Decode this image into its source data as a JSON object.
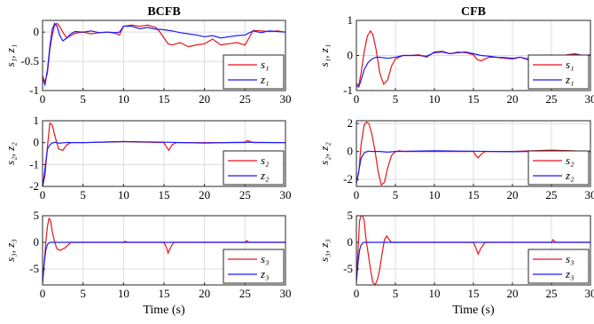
{
  "chart_data": [
    {
      "type": "line",
      "title": "BCFB",
      "xlabel": "",
      "ylabel": "s₁, z₁",
      "xlim": [
        0,
        30
      ],
      "ylim": [
        -1,
        0.2
      ],
      "xticks": [
        "0",
        "5",
        "10",
        "15",
        "20",
        "25",
        "30"
      ],
      "yticks": [
        "-1",
        "-0.5",
        "0"
      ],
      "grid": true,
      "legend_position": "bottom-right",
      "series": [
        {
          "name": "s₁",
          "color": "#e8141c",
          "x": [
            0,
            0.3,
            0.6,
            0.9,
            1.2,
            1.5,
            1.8,
            2.1,
            2.5,
            3,
            3.5,
            4,
            5,
            6,
            7,
            8,
            9,
            9.5,
            10,
            11,
            12,
            13,
            13.5,
            14,
            14.5,
            15,
            15.5,
            16,
            17,
            18,
            19,
            20,
            21,
            22,
            23,
            24,
            25,
            25.5,
            26,
            27,
            28,
            29,
            30
          ],
          "y": [
            -0.75,
            -0.85,
            -0.7,
            -0.3,
            -0.05,
            0.12,
            0.15,
            0.1,
            0,
            -0.1,
            -0.06,
            -0.02,
            0,
            -0.03,
            -0.01,
            0,
            -0.02,
            -0.05,
            0.1,
            0.12,
            0.1,
            0.12,
            0.1,
            0.08,
            0,
            -0.1,
            -0.2,
            -0.22,
            -0.18,
            -0.25,
            -0.22,
            -0.2,
            -0.12,
            -0.22,
            -0.2,
            -0.18,
            -0.22,
            -0.1,
            0.03,
            0.02,
            0.01,
            0.02,
            0
          ]
        },
        {
          "name": "z₁",
          "color": "#1a1aff",
          "x": [
            0,
            0.3,
            0.6,
            0.9,
            1.2,
            1.5,
            1.8,
            2.1,
            2.5,
            3,
            3.5,
            4,
            5,
            6,
            7,
            8,
            9,
            9.5,
            10,
            11,
            12,
            13,
            14,
            15,
            16,
            17,
            18,
            19,
            20,
            21,
            22,
            23,
            24,
            25,
            26,
            27,
            28,
            29,
            30
          ],
          "y": [
            -0.8,
            -0.9,
            -0.65,
            -0.25,
            0.05,
            0.15,
            0.1,
            -0.05,
            -0.15,
            -0.1,
            -0.03,
            0.01,
            0,
            0.02,
            -0.01,
            0,
            -0.01,
            0,
            0.1,
            0.1,
            0.06,
            0.08,
            0.05,
            0.04,
            0.02,
            -0.01,
            -0.03,
            -0.05,
            -0.08,
            -0.06,
            -0.1,
            -0.08,
            -0.06,
            -0.05,
            0.02,
            -0.01,
            0.02,
            0.01,
            0
          ]
        }
      ]
    },
    {
      "type": "line",
      "title": "",
      "xlabel": "",
      "ylabel": "s₂, z₂",
      "xlim": [
        0,
        30
      ],
      "ylim": [
        -2,
        1
      ],
      "xticks": [
        "0",
        "5",
        "10",
        "15",
        "20",
        "25",
        "30"
      ],
      "yticks": [
        "-2",
        "-1",
        "0",
        "1"
      ],
      "grid": true,
      "legend_position": "bottom-right",
      "series": [
        {
          "name": "s₂",
          "color": "#e8141c",
          "x": [
            0,
            0.3,
            0.6,
            0.9,
            1.2,
            1.6,
            2,
            2.5,
            3,
            3.5,
            4,
            5,
            10,
            15,
            15.3,
            15.6,
            16,
            16.5,
            20,
            25,
            25.3,
            26,
            30
          ],
          "y": [
            -2,
            -1.5,
            -0.2,
            0.9,
            0.8,
            0.2,
            -0.3,
            -0.35,
            -0.1,
            0,
            0,
            0,
            0.05,
            0,
            -0.2,
            -0.35,
            -0.1,
            0,
            0,
            0,
            0.1,
            0,
            0
          ]
        },
        {
          "name": "z₂",
          "color": "#1a1aff",
          "x": [
            0,
            0.3,
            0.6,
            0.9,
            1.2,
            1.6,
            2,
            3,
            5,
            10,
            15,
            20,
            25,
            30
          ],
          "y": [
            -2.1,
            -1.2,
            -0.3,
            -0.1,
            -0.02,
            0.02,
            -0.03,
            0.01,
            0,
            0.05,
            0.02,
            -0.02,
            0.02,
            0
          ]
        }
      ]
    },
    {
      "type": "line",
      "title": "",
      "xlabel": "Time (s)",
      "ylabel": "s₃, z₃",
      "xlim": [
        0,
        30
      ],
      "ylim": [
        -8,
        5
      ],
      "xticks": [
        "0",
        "5",
        "10",
        "15",
        "20",
        "25",
        "30"
      ],
      "yticks": [
        "-5",
        "0",
        "5"
      ],
      "grid": true,
      "legend_position": "bottom-right",
      "series": [
        {
          "name": "s₃",
          "color": "#e8141c",
          "x": [
            0,
            0.2,
            0.4,
            0.6,
            0.8,
            1,
            1.2,
            1.5,
            1.8,
            2.2,
            2.8,
            3.5,
            4,
            10,
            10.2,
            10.5,
            15,
            15.3,
            15.5,
            15.8,
            16.2,
            25,
            25.2,
            25.5,
            30
          ],
          "y": [
            -7.5,
            -4,
            0,
            3,
            4.5,
            4,
            2,
            0,
            -1.3,
            -1.5,
            -1,
            0,
            0,
            0,
            0.2,
            0,
            0,
            -1,
            -2,
            -1,
            0,
            0,
            0.3,
            0,
            0
          ]
        },
        {
          "name": "z₃",
          "color": "#1a1aff",
          "x": [
            0,
            0.2,
            0.4,
            0.6,
            0.9,
            1.2,
            2,
            5,
            30
          ],
          "y": [
            -7.8,
            -4,
            -1.5,
            -0.4,
            0,
            0,
            0,
            0,
            0
          ]
        }
      ]
    },
    {
      "type": "line",
      "title": "CFB",
      "xlabel": "",
      "ylabel": "s₁, z₁",
      "xlim": [
        0,
        30
      ],
      "ylim": [
        -1,
        1
      ],
      "xticks": [
        "0",
        "5",
        "10",
        "15",
        "20",
        "25",
        "30"
      ],
      "yticks": [
        "-1",
        "0",
        "1"
      ],
      "grid": true,
      "legend_position": "bottom-right",
      "series": [
        {
          "name": "s₁",
          "color": "#e8141c",
          "x": [
            0,
            0.3,
            0.6,
            1,
            1.4,
            1.8,
            2.1,
            2.5,
            3,
            3.5,
            4,
            4.5,
            5,
            6,
            7,
            8,
            9,
            10,
            11,
            12,
            13,
            14,
            15,
            15.5,
            16,
            17,
            18,
            19,
            20,
            21,
            22,
            23,
            24,
            25,
            26,
            27,
            28,
            29,
            30
          ],
          "y": [
            -0.8,
            -0.85,
            -0.5,
            0.1,
            0.55,
            0.7,
            0.6,
            0.2,
            -0.5,
            -0.82,
            -0.7,
            -0.3,
            -0.1,
            0,
            0,
            0.02,
            -0.05,
            0.1,
            0.12,
            0.05,
            0.1,
            0.08,
            0.02,
            -0.12,
            -0.15,
            -0.05,
            -0.05,
            -0.08,
            -0.1,
            -0.05,
            -0.12,
            -0.1,
            -0.06,
            0.02,
            -0.06,
            0.02,
            0.05,
            0,
            0.02
          ]
        },
        {
          "name": "z₁",
          "color": "#1a1aff",
          "x": [
            0,
            0.3,
            0.6,
            1,
            1.5,
            2,
            2.5,
            3,
            4,
            5,
            6,
            7,
            8,
            9,
            10,
            11,
            12,
            13,
            14,
            15,
            16,
            17,
            18,
            19,
            20,
            21,
            22,
            23,
            24,
            25,
            26,
            27,
            28,
            29,
            30
          ],
          "y": [
            -0.85,
            -0.9,
            -0.7,
            -0.4,
            -0.2,
            -0.1,
            -0.05,
            -0.05,
            -0.08,
            -0.05,
            0,
            0,
            0,
            -0.02,
            0.08,
            0.1,
            0.05,
            0.08,
            0.1,
            0.05,
            0,
            -0.02,
            -0.05,
            -0.06,
            -0.08,
            -0.05,
            -0.1,
            -0.08,
            -0.06,
            -0.04,
            0,
            -0.01,
            0.02,
            0.01,
            0
          ]
        }
      ]
    },
    {
      "type": "line",
      "title": "",
      "xlabel": "",
      "ylabel": "s₂, z₂",
      "xlim": [
        0,
        30
      ],
      "ylim": [
        -2.5,
        2.2
      ],
      "xticks": [
        "0",
        "5",
        "10",
        "15",
        "20",
        "25",
        "30"
      ],
      "yticks": [
        "-2",
        "0",
        "2"
      ],
      "grid": true,
      "legend_position": "bottom-right",
      "series": [
        {
          "name": "s₂",
          "color": "#e8141c",
          "x": [
            0,
            0.3,
            0.6,
            1,
            1.3,
            1.6,
            2,
            2.4,
            2.8,
            3.2,
            3.6,
            4,
            4.5,
            5,
            5.5,
            6,
            10,
            15,
            15.3,
            15.6,
            16,
            16.5,
            20,
            25,
            30
          ],
          "y": [
            -2.2,
            -1.5,
            0.5,
            1.9,
            2.1,
            2,
            1.2,
            0,
            -1.5,
            -2.4,
            -2.2,
            -1.2,
            -0.3,
            0,
            0.05,
            0,
            0,
            0,
            -0.3,
            -0.45,
            -0.2,
            0,
            0,
            0.1,
            0
          ]
        },
        {
          "name": "z₂",
          "color": "#1a1aff",
          "x": [
            0,
            0.3,
            0.6,
            1,
            1.5,
            2,
            3,
            4,
            5,
            10,
            15,
            20,
            25,
            30
          ],
          "y": [
            -2.3,
            -1.4,
            -0.5,
            -0.1,
            0.02,
            0,
            0,
            -0.05,
            0,
            0.05,
            0.02,
            -0.02,
            0.02,
            0
          ]
        }
      ]
    },
    {
      "type": "line",
      "title": "",
      "xlabel": "Time (s)",
      "ylabel": "s₃, z₃",
      "xlim": [
        0,
        30
      ],
      "ylim": [
        -8,
        5
      ],
      "xticks": [
        "0",
        "5",
        "10",
        "15",
        "20",
        "25",
        "30"
      ],
      "yticks": [
        "-5",
        "0",
        "5"
      ],
      "grid": true,
      "legend_position": "bottom-right",
      "series": [
        {
          "name": "s₃",
          "color": "#e8141c",
          "x": [
            0,
            0.2,
            0.4,
            0.6,
            0.8,
            1,
            1.2,
            1.5,
            1.8,
            2.1,
            2.4,
            2.7,
            3,
            3.3,
            3.6,
            3.9,
            4.2,
            4.5,
            5,
            10,
            15,
            15.3,
            15.6,
            16,
            16.5,
            25,
            25.2,
            25.5,
            30
          ],
          "y": [
            -7,
            -2,
            4,
            5,
            5,
            4,
            1,
            -2,
            -5,
            -7.5,
            -8,
            -7,
            -5,
            -2,
            0.5,
            1.2,
            0.5,
            0,
            0,
            0,
            0,
            -1,
            -2.2,
            -1,
            0,
            0,
            0.5,
            0,
            0
          ]
        },
        {
          "name": "z₃",
          "color": "#1a1aff",
          "x": [
            0,
            0.2,
            0.4,
            0.6,
            0.9,
            1.2,
            2,
            5,
            30
          ],
          "y": [
            -7.5,
            -4,
            -1.5,
            -0.5,
            0,
            0,
            0,
            0,
            0
          ]
        }
      ]
    }
  ]
}
